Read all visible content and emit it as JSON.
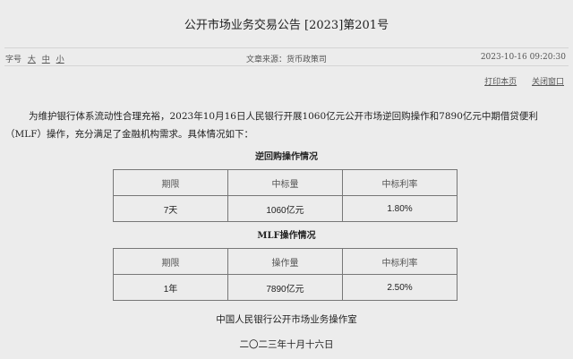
{
  "title": "公开市场业务交易公告 [2023]第201号",
  "meta": {
    "font_size_label": "字号",
    "sizes": [
      "大",
      "中",
      "小"
    ],
    "source": "文章来源：货币政策司",
    "datetime": "2023-10-16 09:20:30"
  },
  "actions": {
    "print": "打印本页",
    "close": "关闭窗口"
  },
  "paragraph": "为维护银行体系流动性合理充裕，2023年10月16日人民银行开展1060亿元公开市场逆回购操作和7890亿元中期借贷便利（MLF）操作，充分满足了金融机构需求。具体情况如下：",
  "table1": {
    "caption": "逆回购操作情况",
    "headers": [
      "期限",
      "中标量",
      "中标利率"
    ],
    "row": [
      "7天",
      "1060亿元",
      "1.80%"
    ]
  },
  "table2": {
    "caption": "MLF操作情况",
    "headers": [
      "期限",
      "操作量",
      "中标利率"
    ],
    "row": [
      "1年",
      "7890亿元",
      "2.50%"
    ]
  },
  "footer": {
    "org": "中国人民银行公开市场业务操作室",
    "date": "二〇二三年十月十六日"
  }
}
